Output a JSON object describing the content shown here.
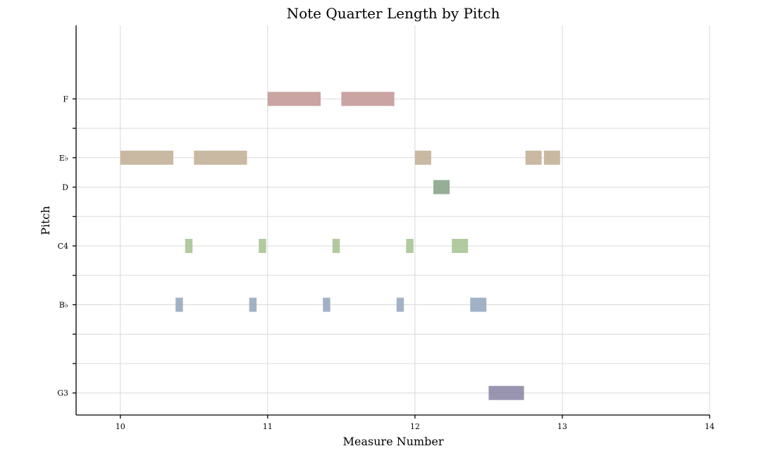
{
  "chart_data": {
    "type": "piano-roll",
    "title": "Note Quarter Length by Pitch",
    "xlabel": "Measure Number",
    "ylabel": "Pitch",
    "xlim": [
      9.7,
      14
    ],
    "ylim": [
      54.25,
      67.5
    ],
    "x_ticks": [
      10,
      11,
      12,
      13,
      14
    ],
    "y_ticks": [
      {
        "value": 55,
        "label": "G3"
      },
      {
        "value": 56,
        "label": ""
      },
      {
        "value": 57,
        "label": ""
      },
      {
        "value": 58,
        "label": "B♭"
      },
      {
        "value": 59,
        "label": ""
      },
      {
        "value": 60,
        "label": "C4"
      },
      {
        "value": 61,
        "label": ""
      },
      {
        "value": 62,
        "label": "D"
      },
      {
        "value": 63,
        "label": "E♭"
      },
      {
        "value": 64,
        "label": ""
      },
      {
        "value": 65,
        "label": "F"
      }
    ],
    "grid": true,
    "notes": [
      {
        "pitch": "F",
        "midi": 65,
        "start": 11.0,
        "length": 0.36,
        "color": "#c49a98"
      },
      {
        "pitch": "F",
        "midi": 65,
        "start": 11.5,
        "length": 0.36,
        "color": "#c49a98"
      },
      {
        "pitch": "E♭",
        "midi": 63,
        "start": 10.0,
        "length": 0.36,
        "color": "#c4b198"
      },
      {
        "pitch": "E♭",
        "midi": 63,
        "start": 10.5,
        "length": 0.36,
        "color": "#c4b198"
      },
      {
        "pitch": "E♭",
        "midi": 63,
        "start": 12.0,
        "length": 0.11,
        "color": "#c4b198"
      },
      {
        "pitch": "E♭",
        "midi": 63,
        "start": 12.75,
        "length": 0.11,
        "color": "#c4b198"
      },
      {
        "pitch": "E♭",
        "midi": 63,
        "start": 12.875,
        "length": 0.11,
        "color": "#c4b198"
      },
      {
        "pitch": "D",
        "midi": 62,
        "start": 12.125,
        "length": 0.11,
        "color": "#8aa58a"
      },
      {
        "pitch": "C4",
        "midi": 60,
        "start": 10.44,
        "length": 0.05,
        "color": "#a8c496"
      },
      {
        "pitch": "C4",
        "midi": 60,
        "start": 10.94,
        "length": 0.05,
        "color": "#a8c496"
      },
      {
        "pitch": "C4",
        "midi": 60,
        "start": 11.44,
        "length": 0.05,
        "color": "#a8c496"
      },
      {
        "pitch": "C4",
        "midi": 60,
        "start": 11.94,
        "length": 0.05,
        "color": "#a8c496"
      },
      {
        "pitch": "C4",
        "midi": 60,
        "start": 12.25,
        "length": 0.11,
        "color": "#a8c496"
      },
      {
        "pitch": "B♭",
        "midi": 58,
        "start": 10.375,
        "length": 0.05,
        "color": "#98aac0"
      },
      {
        "pitch": "B♭",
        "midi": 58,
        "start": 10.875,
        "length": 0.05,
        "color": "#98aac0"
      },
      {
        "pitch": "B♭",
        "midi": 58,
        "start": 11.375,
        "length": 0.05,
        "color": "#98aac0"
      },
      {
        "pitch": "B♭",
        "midi": 58,
        "start": 11.875,
        "length": 0.05,
        "color": "#98aac0"
      },
      {
        "pitch": "B♭",
        "midi": 58,
        "start": 12.375,
        "length": 0.11,
        "color": "#98aac0"
      },
      {
        "pitch": "G3",
        "midi": 55,
        "start": 12.5,
        "length": 0.24,
        "color": "#8e8aa8"
      }
    ]
  }
}
